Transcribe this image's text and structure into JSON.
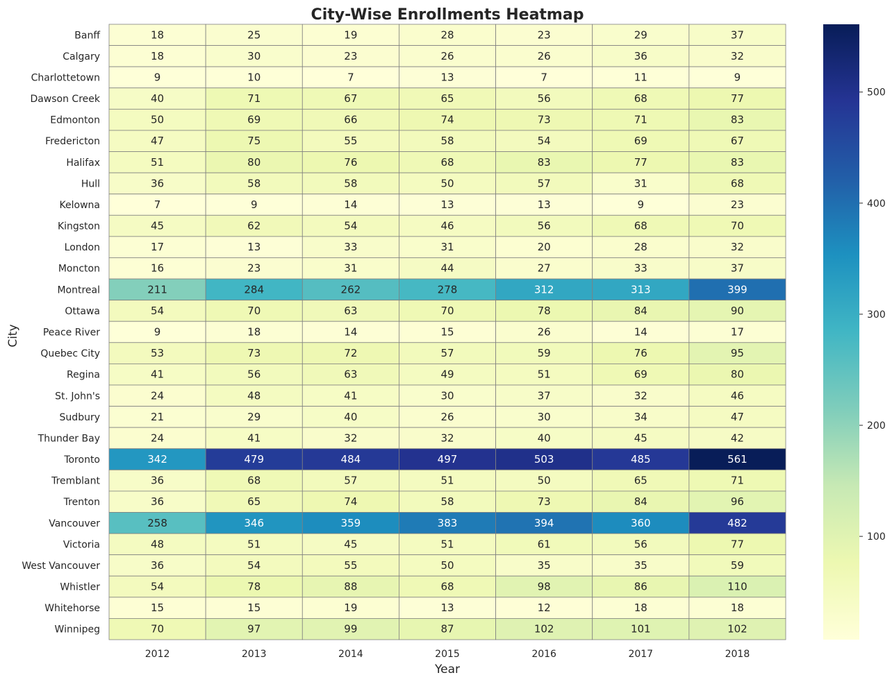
{
  "chart_data": {
    "type": "heatmap",
    "title": "City-Wise Enrollments Heatmap",
    "xlabel": "Year",
    "ylabel": "City",
    "colormap": "YlGnBu",
    "value_range": [
      7,
      561
    ],
    "colorbar_ticks": [
      100,
      200,
      300,
      400,
      500
    ],
    "annotations": true,
    "x": [
      "2012",
      "2013",
      "2014",
      "2015",
      "2016",
      "2017",
      "2018"
    ],
    "y": [
      "Banff",
      "Calgary",
      "Charlottetown",
      "Dawson Creek",
      "Edmonton",
      "Fredericton",
      "Halifax",
      "Hull",
      "Kelowna",
      "Kingston",
      "London",
      "Moncton",
      "Montreal",
      "Ottawa",
      "Peace River",
      "Quebec City",
      "Regina",
      "St. John's",
      "Sudbury",
      "Thunder Bay",
      "Toronto",
      "Tremblant",
      "Trenton",
      "Vancouver",
      "Victoria",
      "West Vancouver",
      "Whistler",
      "Whitehorse",
      "Winnipeg"
    ],
    "values": [
      [
        18,
        25,
        19,
        28,
        23,
        29,
        37
      ],
      [
        18,
        30,
        23,
        26,
        26,
        36,
        32
      ],
      [
        9,
        10,
        7,
        13,
        7,
        11,
        9
      ],
      [
        40,
        71,
        67,
        65,
        56,
        68,
        77
      ],
      [
        50,
        69,
        66,
        74,
        73,
        71,
        83
      ],
      [
        47,
        75,
        55,
        58,
        54,
        69,
        67
      ],
      [
        51,
        80,
        76,
        68,
        83,
        77,
        83
      ],
      [
        36,
        58,
        58,
        50,
        57,
        31,
        68
      ],
      [
        7,
        9,
        14,
        13,
        13,
        9,
        23
      ],
      [
        45,
        62,
        54,
        46,
        56,
        68,
        70
      ],
      [
        17,
        13,
        33,
        31,
        20,
        28,
        32
      ],
      [
        16,
        23,
        31,
        44,
        27,
        33,
        37
      ],
      [
        211,
        284,
        262,
        278,
        312,
        313,
        399
      ],
      [
        54,
        70,
        63,
        70,
        78,
        84,
        90
      ],
      [
        9,
        18,
        14,
        15,
        26,
        14,
        17
      ],
      [
        53,
        73,
        72,
        57,
        59,
        76,
        95
      ],
      [
        41,
        56,
        63,
        49,
        51,
        69,
        80
      ],
      [
        24,
        48,
        41,
        30,
        37,
        32,
        46
      ],
      [
        21,
        29,
        40,
        26,
        30,
        34,
        47
      ],
      [
        24,
        41,
        32,
        32,
        40,
        45,
        42
      ],
      [
        342,
        479,
        484,
        497,
        503,
        485,
        561
      ],
      [
        36,
        68,
        57,
        51,
        50,
        65,
        71
      ],
      [
        36,
        65,
        74,
        58,
        73,
        84,
        96
      ],
      [
        258,
        346,
        359,
        383,
        394,
        360,
        482
      ],
      [
        48,
        51,
        45,
        51,
        61,
        56,
        77
      ],
      [
        36,
        54,
        55,
        50,
        35,
        35,
        59
      ],
      [
        54,
        78,
        88,
        68,
        98,
        86,
        110
      ],
      [
        15,
        15,
        19,
        13,
        12,
        18,
        18
      ],
      [
        70,
        97,
        99,
        87,
        102,
        101,
        102
      ]
    ]
  }
}
